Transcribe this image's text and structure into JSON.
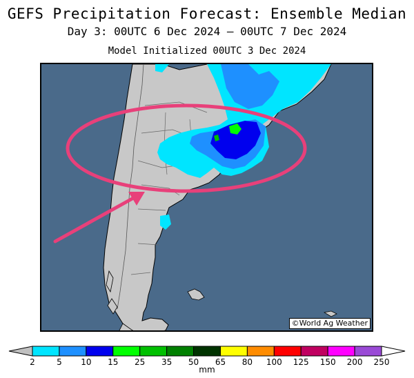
{
  "header": {
    "title": "GEFS Precipitation Forecast: Ensemble Median",
    "valid_period": "Day 3: 00UTC 6 Dec 2024 — 00UTC 7 Dec 2024",
    "init": "Model Initialized 00UTC 3 Dec 2024"
  },
  "map": {
    "region": "South America - Argentina/Uruguay/Chile",
    "credit": "©World Ag Weather",
    "ocean_color": "#4a6a8a",
    "land_color": "#c8c8c8",
    "annotation": {
      "ellipse_color": "#e8407a",
      "arrow_color": "#e8407a"
    }
  },
  "colorbar": {
    "unit": "mm",
    "ticks": [
      "2",
      "5",
      "10",
      "15",
      "25",
      "35",
      "50",
      "65",
      "80",
      "100",
      "125",
      "150",
      "200",
      "250"
    ],
    "colors": [
      "#00e5ff",
      "#1e90ff",
      "#0000ee",
      "#00ff00",
      "#00c000",
      "#008000",
      "#003300",
      "#ffff00",
      "#ff8c00",
      "#ff0000",
      "#c00060",
      "#ff00ff",
      "#9a4ad6"
    ],
    "under_color": "#c0c0c0",
    "over_color": "#ffffff"
  }
}
